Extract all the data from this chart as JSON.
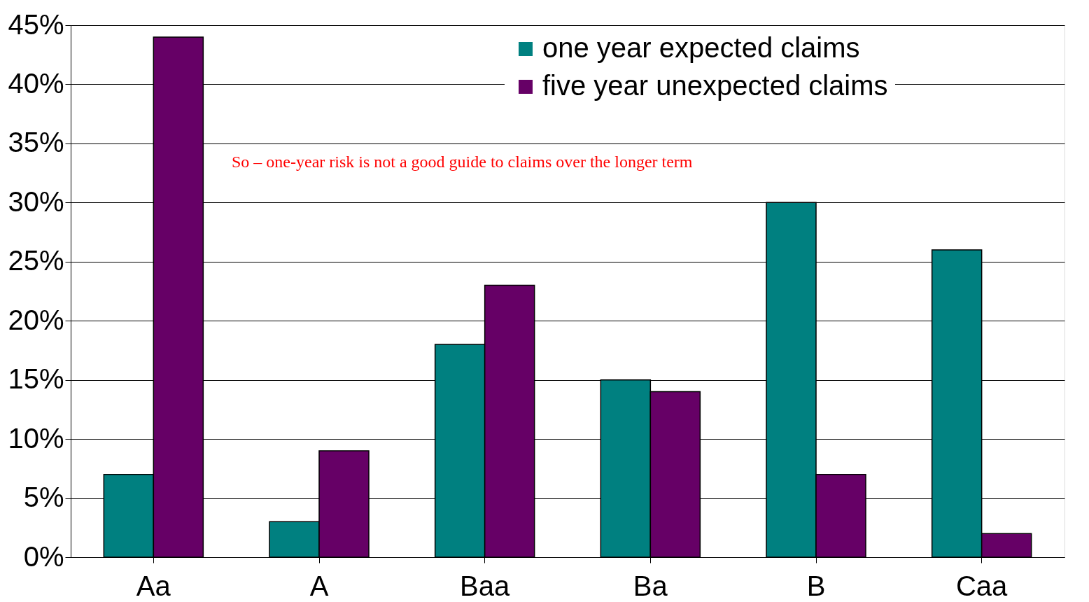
{
  "chart_data": {
    "type": "bar",
    "categories": [
      "Aa",
      "A",
      "Baa",
      "Ba",
      "B",
      "Caa"
    ],
    "series": [
      {
        "name": "one year expected claims",
        "color": "#008080",
        "values": [
          7,
          3,
          18,
          15,
          30,
          26
        ]
      },
      {
        "name": "five year unexpected claims",
        "color": "#660066",
        "values": [
          44,
          9,
          23,
          14,
          7,
          2
        ]
      }
    ],
    "ylim": [
      0,
      45
    ],
    "yticks": [
      {
        "value": 0,
        "label": "0%"
      },
      {
        "value": 5,
        "label": "5%"
      },
      {
        "value": 10,
        "label": "10%"
      },
      {
        "value": 15,
        "label": "15%"
      },
      {
        "value": 20,
        "label": "20%"
      },
      {
        "value": 25,
        "label": "25%"
      },
      {
        "value": 30,
        "label": "30%"
      },
      {
        "value": 35,
        "label": "35%"
      },
      {
        "value": 40,
        "label": "40%"
      },
      {
        "value": 45,
        "label": "45%"
      }
    ],
    "annotations": [
      "So – one-year risk is not a good guide to claims over the longer term"
    ],
    "grid": "y",
    "legend": "top right"
  }
}
